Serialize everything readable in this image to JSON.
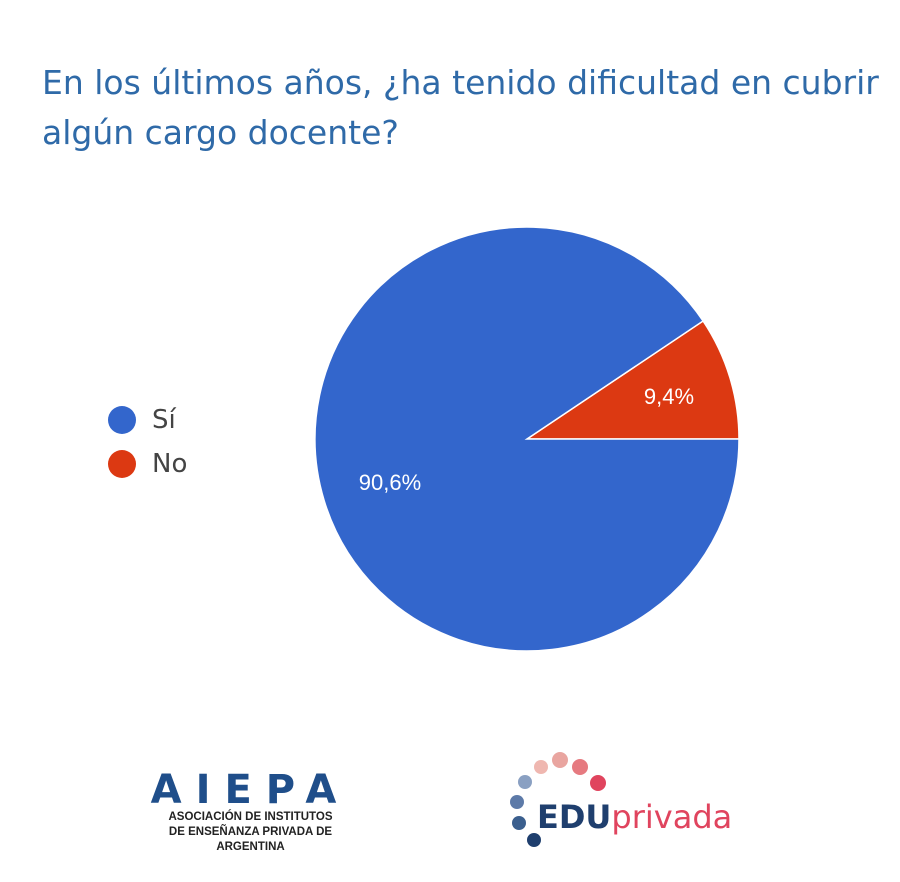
{
  "chart_data": {
    "type": "pie",
    "title": "En los últimos años, ¿ha tenido dificultad en cubrir algún cargo docente?",
    "categories": [
      "Sí",
      "No"
    ],
    "values": [
      90.6,
      9.4
    ],
    "data_labels": [
      "90,6%",
      "9,4%"
    ],
    "colors": [
      "#3366cc",
      "#dc3912"
    ],
    "legend_position": "left"
  },
  "logos": {
    "aiepa": {
      "mark": "AIEPA",
      "line1": "ASOCIACIÓN DE INSTITUTOS",
      "line2": "DE ENSEÑANZA PRIVADA DE ARGENTINA"
    },
    "eduprivada": {
      "part1": "EDU",
      "part2": "privada",
      "color1": "#1f3f6e",
      "color2": "#e0445e"
    }
  }
}
